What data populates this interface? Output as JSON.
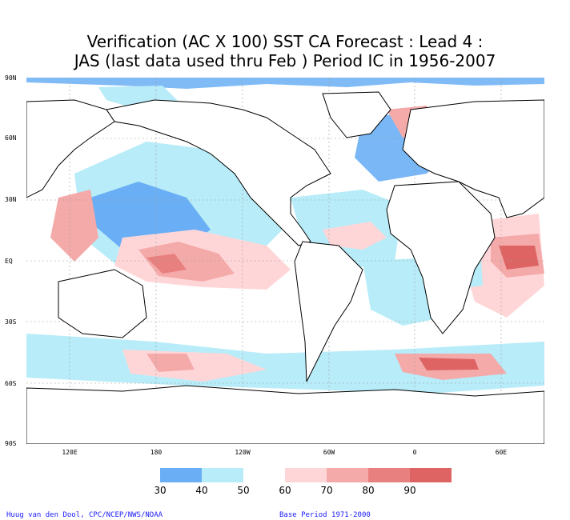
{
  "title": {
    "line1": "Verification (AC X 100) SST CA Forecast : Lead 4 :",
    "line2": "JAS (last data used thru Feb ) Period IC in 1956-2007"
  },
  "axes": {
    "lat_labels": [
      "90N",
      "60N",
      "30N",
      "EQ",
      "30S",
      "60S",
      "90S"
    ],
    "lon_labels": [
      "120E",
      "180",
      "120W",
      "60W",
      "0",
      "60E"
    ]
  },
  "legend": {
    "labels": [
      "30",
      "40",
      "50",
      "60",
      "70",
      "80",
      "90"
    ],
    "colors": [
      "#6aaff5",
      "#b7ecf8",
      "#ffffff",
      "#ffd6d8",
      "#f5aaaa",
      "#e88080",
      "#de6464"
    ]
  },
  "footer": {
    "left": "Huug van den Dool, CPC/NCEP/NWS/NOAA",
    "right": "Base Period 1971-2000"
  },
  "colors": {
    "land_outline": "#000000",
    "grid": "#9a9a9a",
    "background": "#ffffff"
  }
}
